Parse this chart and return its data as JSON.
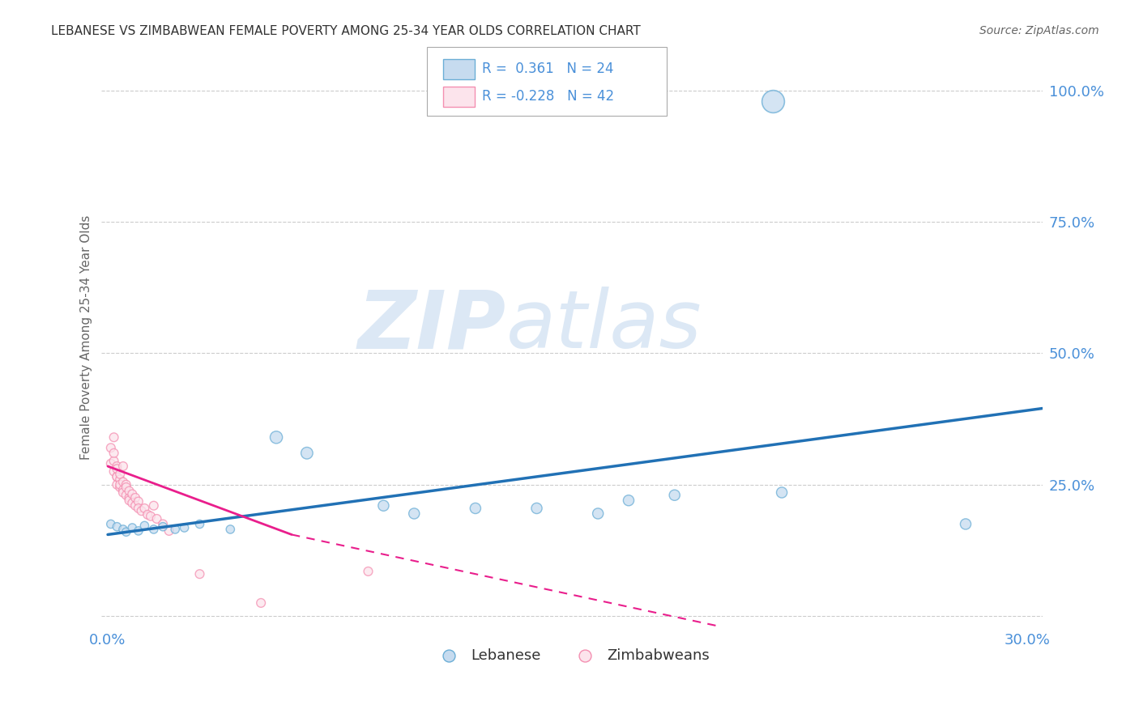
{
  "title": "LEBANESE VS ZIMBABWEAN FEMALE POVERTY AMONG 25-34 YEAR OLDS CORRELATION CHART",
  "source": "Source: ZipAtlas.com",
  "ylabel_label": "Female Poverty Among 25-34 Year Olds",
  "xlim": [
    -0.002,
    0.305
  ],
  "ylim": [
    -0.02,
    1.08
  ],
  "xtick_positions": [
    0.0,
    0.3
  ],
  "xtick_labels": [
    "0.0%",
    "30.0%"
  ],
  "ytick_positions": [
    0.0,
    0.25,
    0.5,
    0.75,
    1.0
  ],
  "ytick_labels": [
    "",
    "25.0%",
    "50.0%",
    "75.0%",
    "100.0%"
  ],
  "grid_color": "#cccccc",
  "background_color": "#ffffff",
  "watermark_zip": "ZIP",
  "watermark_atlas": "atlas",
  "watermark_color": "#dce8f5",
  "legend_r_lebanese": "0.361",
  "legend_n_lebanese": "24",
  "legend_r_zimbabwean": "-0.228",
  "legend_n_zimbabwean": "42",
  "lebanese_color": "#6baed6",
  "lebanese_fill": "#c6dbef",
  "zimbabwean_color": "#f48fb1",
  "zimbabwean_fill": "#fce4ec",
  "trendline_lebanese_color": "#2171b5",
  "trendline_zimbabwean_color": "#e91e8c",
  "lebanese_scatter": [
    [
      0.001,
      0.175
    ],
    [
      0.003,
      0.17
    ],
    [
      0.005,
      0.165
    ],
    [
      0.006,
      0.16
    ],
    [
      0.008,
      0.168
    ],
    [
      0.01,
      0.162
    ],
    [
      0.012,
      0.172
    ],
    [
      0.015,
      0.165
    ],
    [
      0.018,
      0.17
    ],
    [
      0.022,
      0.165
    ],
    [
      0.025,
      0.168
    ],
    [
      0.03,
      0.175
    ],
    [
      0.04,
      0.165
    ],
    [
      0.055,
      0.34
    ],
    [
      0.065,
      0.31
    ],
    [
      0.09,
      0.21
    ],
    [
      0.1,
      0.195
    ],
    [
      0.12,
      0.205
    ],
    [
      0.14,
      0.205
    ],
    [
      0.16,
      0.195
    ],
    [
      0.17,
      0.22
    ],
    [
      0.185,
      0.23
    ],
    [
      0.22,
      0.235
    ],
    [
      0.28,
      0.175
    ]
  ],
  "lebanese_sizes": [
    55,
    55,
    55,
    55,
    55,
    55,
    55,
    55,
    55,
    55,
    55,
    55,
    55,
    120,
    110,
    90,
    90,
    90,
    90,
    90,
    90,
    90,
    90,
    90
  ],
  "zimbabwean_scatter": [
    [
      0.001,
      0.32
    ],
    [
      0.001,
      0.29
    ],
    [
      0.002,
      0.34
    ],
    [
      0.002,
      0.295
    ],
    [
      0.002,
      0.275
    ],
    [
      0.002,
      0.31
    ],
    [
      0.003,
      0.265
    ],
    [
      0.003,
      0.285
    ],
    [
      0.003,
      0.25
    ],
    [
      0.003,
      0.265
    ],
    [
      0.003,
      0.28
    ],
    [
      0.004,
      0.245
    ],
    [
      0.004,
      0.26
    ],
    [
      0.004,
      0.27
    ],
    [
      0.004,
      0.25
    ],
    [
      0.005,
      0.24
    ],
    [
      0.005,
      0.255
    ],
    [
      0.005,
      0.285
    ],
    [
      0.005,
      0.235
    ],
    [
      0.006,
      0.25
    ],
    [
      0.006,
      0.23
    ],
    [
      0.006,
      0.245
    ],
    [
      0.007,
      0.225
    ],
    [
      0.007,
      0.238
    ],
    [
      0.007,
      0.22
    ],
    [
      0.008,
      0.232
    ],
    [
      0.008,
      0.215
    ],
    [
      0.009,
      0.225
    ],
    [
      0.009,
      0.21
    ],
    [
      0.01,
      0.218
    ],
    [
      0.01,
      0.205
    ],
    [
      0.011,
      0.2
    ],
    [
      0.012,
      0.205
    ],
    [
      0.013,
      0.193
    ],
    [
      0.014,
      0.19
    ],
    [
      0.015,
      0.21
    ],
    [
      0.016,
      0.185
    ],
    [
      0.018,
      0.175
    ],
    [
      0.02,
      0.162
    ],
    [
      0.03,
      0.08
    ],
    [
      0.05,
      0.025
    ],
    [
      0.085,
      0.085
    ]
  ],
  "zimbabwean_sizes": [
    60,
    60,
    60,
    60,
    60,
    60,
    60,
    60,
    60,
    60,
    60,
    60,
    60,
    60,
    60,
    60,
    60,
    60,
    60,
    60,
    60,
    60,
    60,
    60,
    60,
    60,
    60,
    60,
    60,
    60,
    60,
    60,
    60,
    60,
    60,
    60,
    60,
    60,
    60,
    60,
    60,
    60
  ],
  "special_point_lebanese": [
    0.217,
    0.98
  ],
  "special_point_size": 400,
  "trendline_leb_x0": 0.0,
  "trendline_leb_y0": 0.155,
  "trendline_leb_x1": 0.305,
  "trendline_leb_y1": 0.395,
  "trendline_zim_solid_x0": 0.0,
  "trendline_zim_solid_y0": 0.285,
  "trendline_zim_solid_x1": 0.06,
  "trendline_zim_solid_y1": 0.155,
  "trendline_zim_dash_x0": 0.06,
  "trendline_zim_dash_y0": 0.155,
  "trendline_zim_dash_x1": 0.2,
  "trendline_zim_dash_y1": -0.02
}
